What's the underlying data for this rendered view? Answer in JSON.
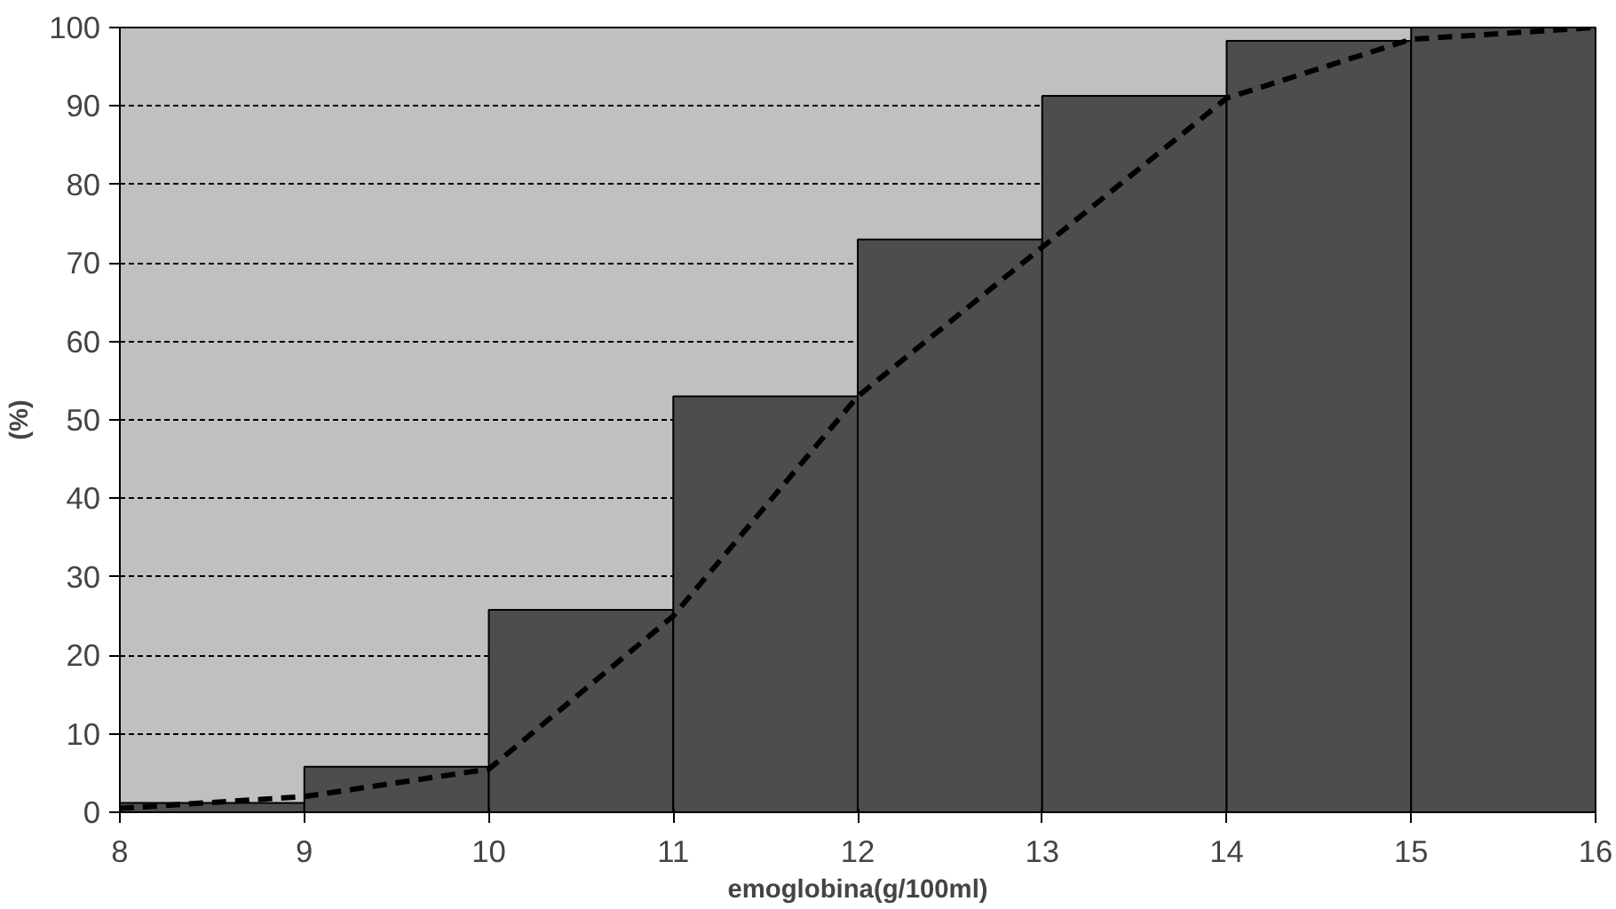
{
  "chart_data": {
    "type": "histogram",
    "xlabel": "emoglobina(g/100ml)",
    "ylabel": "(%)",
    "bins": [
      8,
      9,
      10,
      11,
      12,
      13,
      14,
      15,
      16
    ],
    "values": [
      1.2,
      5.8,
      25.8,
      53,
      73,
      91.3,
      98.3,
      100
    ],
    "color": "#4d4d4d",
    "series": [
      {
        "type": "line",
        "x": [
          8,
          9,
          10,
          11,
          12,
          13,
          14,
          15,
          16
        ],
        "values": [
          0.5,
          2,
          5.5,
          25,
          53,
          72,
          91,
          98.5,
          100
        ],
        "color": "#000000",
        "line_style": "dashed"
      }
    ],
    "xlim": [
      8,
      16
    ],
    "ylim": [
      0,
      100
    ],
    "xticks": [
      8,
      9,
      10,
      11,
      12,
      13,
      14,
      15,
      16
    ],
    "yticks": [
      0,
      10,
      20,
      30,
      40,
      50,
      60,
      70,
      80,
      90,
      100
    ],
    "grid": "y"
  }
}
